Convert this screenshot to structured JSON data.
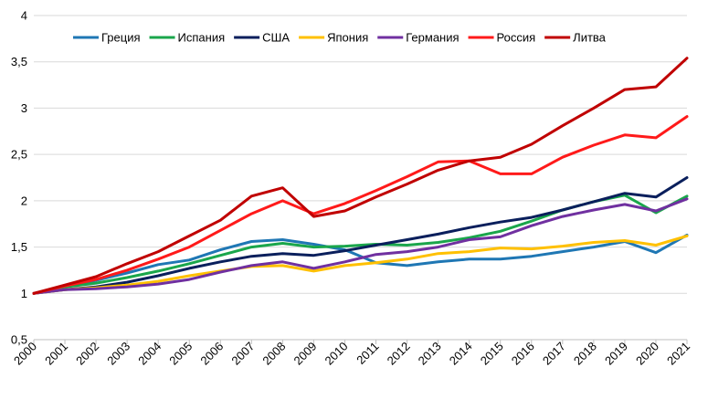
{
  "chart_data": {
    "type": "line",
    "title": "",
    "xlabel": "",
    "ylabel": "",
    "ylim": [
      0.5,
      4
    ],
    "y_ticks": [
      "0,5",
      "1",
      "1,5",
      "2",
      "2,5",
      "3",
      "3,5",
      "4"
    ],
    "y_tick_values": [
      0.5,
      1,
      1.5,
      2,
      2.5,
      3,
      3.5,
      4
    ],
    "grid": "horizontal",
    "legend_position": "top",
    "categories": [
      "2000",
      "2001",
      "2002",
      "2003",
      "2004",
      "2005",
      "2006",
      "2007",
      "2008",
      "2009",
      "2010",
      "2011",
      "2012",
      "2013",
      "2014",
      "2015",
      "2016",
      "2017",
      "2018",
      "2019",
      "2020",
      "2021"
    ],
    "series": [
      {
        "name": "Греция",
        "color": "#1f77b4",
        "values": [
          1.0,
          1.08,
          1.14,
          1.22,
          1.31,
          1.36,
          1.47,
          1.56,
          1.58,
          1.53,
          1.47,
          1.33,
          1.3,
          1.34,
          1.37,
          1.37,
          1.4,
          1.45,
          1.5,
          1.56,
          1.44,
          1.63
        ]
      },
      {
        "name": "Испания",
        "color": "#1aa64b",
        "values": [
          1.0,
          1.07,
          1.11,
          1.17,
          1.24,
          1.32,
          1.41,
          1.5,
          1.54,
          1.5,
          1.51,
          1.53,
          1.52,
          1.55,
          1.6,
          1.67,
          1.78,
          1.9,
          1.99,
          2.06,
          1.87,
          2.05
        ]
      },
      {
        "name": "США",
        "color": "#0a1f5c",
        "values": [
          1.0,
          1.04,
          1.07,
          1.12,
          1.19,
          1.27,
          1.34,
          1.4,
          1.43,
          1.41,
          1.46,
          1.52,
          1.58,
          1.64,
          1.71,
          1.77,
          1.82,
          1.9,
          1.99,
          2.08,
          2.04,
          2.25
        ]
      },
      {
        "name": "Япония",
        "color": "#ffc000",
        "values": [
          1.0,
          1.04,
          1.06,
          1.09,
          1.13,
          1.19,
          1.24,
          1.29,
          1.3,
          1.24,
          1.3,
          1.33,
          1.37,
          1.43,
          1.45,
          1.49,
          1.48,
          1.51,
          1.55,
          1.57,
          1.52,
          1.62
        ]
      },
      {
        "name": "Германия",
        "color": "#7030a0",
        "values": [
          1.0,
          1.04,
          1.05,
          1.07,
          1.1,
          1.15,
          1.23,
          1.3,
          1.34,
          1.27,
          1.34,
          1.42,
          1.45,
          1.5,
          1.58,
          1.61,
          1.73,
          1.83,
          1.9,
          1.96,
          1.89,
          2.02
        ]
      },
      {
        "name": "Россия",
        "color": "#ff1a1a",
        "values": [
          1.0,
          1.08,
          1.15,
          1.25,
          1.37,
          1.5,
          1.68,
          1.86,
          2.0,
          1.86,
          1.97,
          2.11,
          2.26,
          2.42,
          2.43,
          2.29,
          2.29,
          2.47,
          2.6,
          2.71,
          2.68,
          2.91
        ]
      },
      {
        "name": "Литва",
        "color": "#c00000",
        "values": [
          1.0,
          1.09,
          1.18,
          1.32,
          1.45,
          1.62,
          1.79,
          2.05,
          2.14,
          1.83,
          1.89,
          2.04,
          2.18,
          2.33,
          2.43,
          2.47,
          2.61,
          2.81,
          3.0,
          3.2,
          3.23,
          3.54
        ]
      }
    ]
  }
}
